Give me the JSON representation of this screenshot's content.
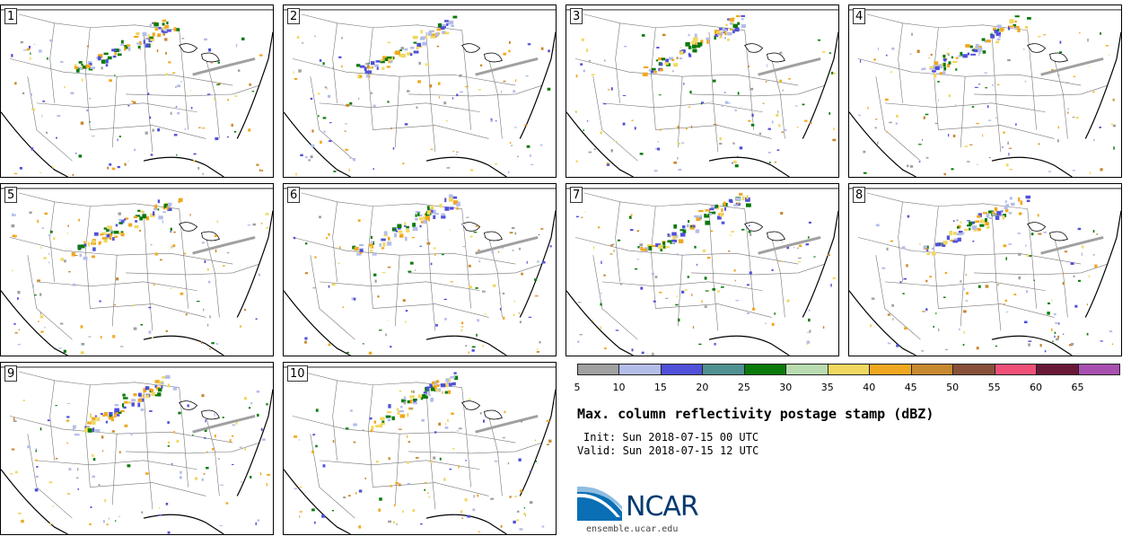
{
  "panels": [
    {
      "label": "1"
    },
    {
      "label": "2"
    },
    {
      "label": "3"
    },
    {
      "label": "4"
    },
    {
      "label": "5"
    },
    {
      "label": "6"
    },
    {
      "label": "7"
    },
    {
      "label": "8"
    },
    {
      "label": "9"
    },
    {
      "label": "10"
    }
  ],
  "colorbar": {
    "colors": [
      "#a0a0a0",
      "#b4bde8",
      "#5050d8",
      "#4f9090",
      "#0a7a0a",
      "#b8dcb0",
      "#f0d860",
      "#f0a820",
      "#c88830",
      "#885038",
      "#f05078",
      "#6a1838",
      "#a850b0"
    ],
    "ticks": [
      "5",
      "10",
      "15",
      "20",
      "25",
      "30",
      "35",
      "40",
      "45",
      "50",
      "55",
      "60",
      "65"
    ]
  },
  "title": "Max. column reflectivity postage stamp (dBZ)",
  "init": "Init: Sun 2018-07-15 00 UTC",
  "valid": "Valid: Sun 2018-07-15 12 UTC",
  "logo": {
    "text": "NCAR",
    "url": "ensemble.ucar.edu"
  }
}
